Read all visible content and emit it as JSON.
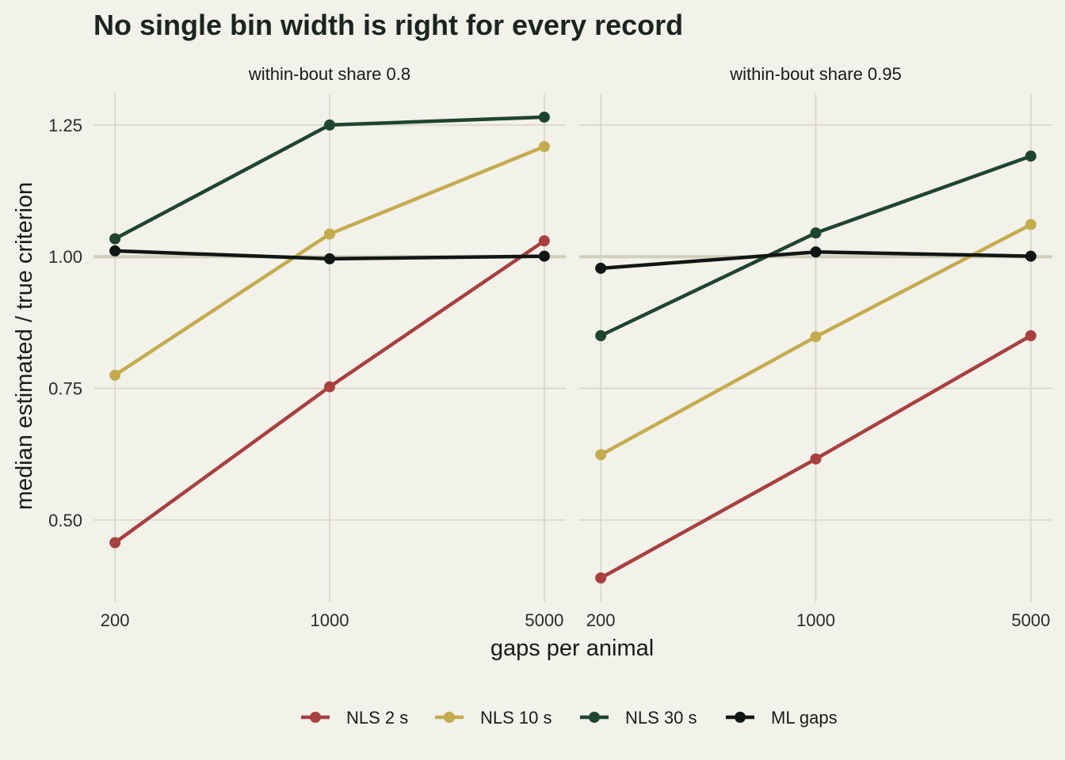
{
  "chart_data": {
    "type": "line",
    "title": "No single bin width is right for every record",
    "xlabel": "gaps per animal",
    "ylabel": "median estimated / true criterion",
    "x_scale": "log",
    "x_ticks": [
      200,
      1000,
      5000
    ],
    "x_tick_labels": [
      "200",
      "1000",
      "5000"
    ],
    "y_ticks": [
      0.5,
      0.75,
      1.0,
      1.25
    ],
    "y_tick_labels": [
      "0.50",
      "0.75",
      "1.00",
      "1.25"
    ],
    "ylim": [
      0.345,
      1.31
    ],
    "reference_line": 1.0,
    "grid": true,
    "legend": {
      "position": "bottom",
      "entries": [
        {
          "label": "NLS 2 s",
          "color": "#a84040"
        },
        {
          "label": "NLS 10 s",
          "color": "#c4ab4e"
        },
        {
          "label": "NLS 30 s",
          "color": "#1f4430"
        },
        {
          "label": "ML gaps",
          "color": "#101614"
        }
      ]
    },
    "panels": [
      {
        "title": "within-bout share 0.8",
        "x": [
          200,
          1000,
          5000
        ],
        "series": [
          {
            "name": "NLS 2 s",
            "color": "#a84040",
            "values": [
              0.457,
              0.753,
              1.03
            ]
          },
          {
            "name": "NLS 10 s",
            "color": "#c4ab4e",
            "values": [
              0.775,
              1.043,
              1.209
            ]
          },
          {
            "name": "NLS 30 s",
            "color": "#1f4430",
            "values": [
              1.034,
              1.25,
              1.265
            ]
          },
          {
            "name": "ML gaps",
            "color": "#101614",
            "values": [
              1.011,
              0.996,
              1.001
            ]
          }
        ]
      },
      {
        "title": "within-bout share 0.95",
        "x": [
          200,
          1000,
          5000
        ],
        "series": [
          {
            "name": "NLS 2 s",
            "color": "#a84040",
            "values": [
              0.39,
              0.616,
              0.85
            ]
          },
          {
            "name": "NLS 10 s",
            "color": "#c4ab4e",
            "values": [
              0.624,
              0.848,
              1.061
            ]
          },
          {
            "name": "NLS 30 s",
            "color": "#1f4430",
            "values": [
              0.85,
              1.045,
              1.191
            ]
          },
          {
            "name": "ML gaps",
            "color": "#101614",
            "values": [
              0.978,
              1.009,
              1.001
            ]
          }
        ]
      }
    ]
  }
}
